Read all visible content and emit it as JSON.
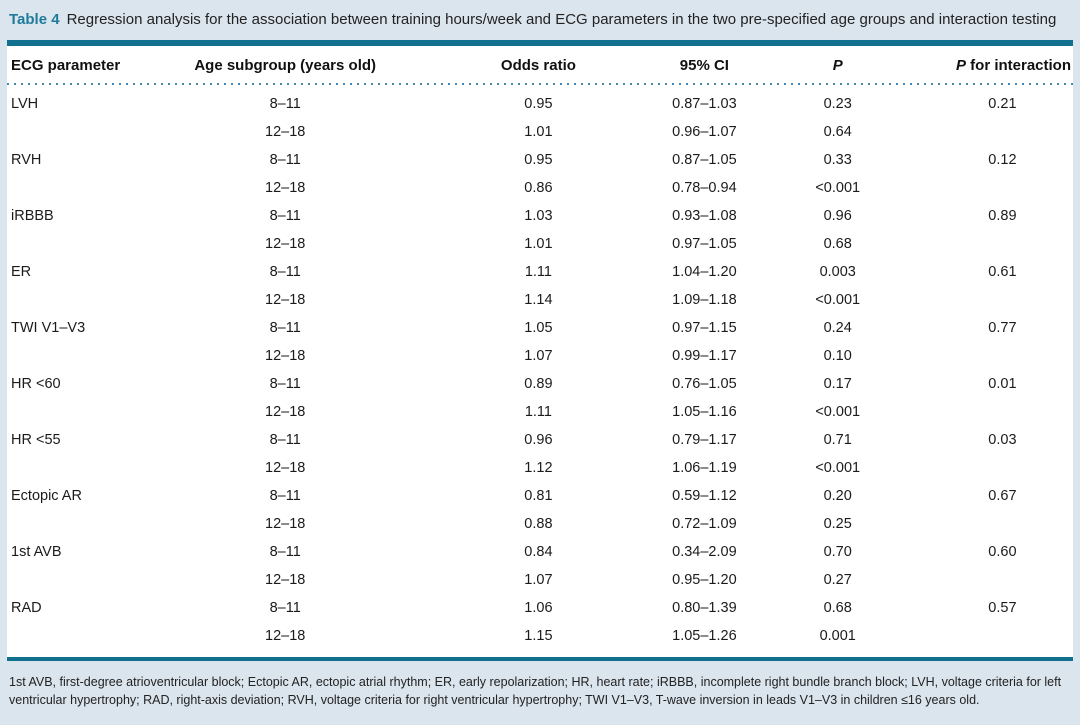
{
  "caption": {
    "label": "Table 4",
    "text": "Regression analysis for the association between training hours/week and ECG parameters in the two pre-specified age groups and interaction testing"
  },
  "table": {
    "header": {
      "ecg": "ECG parameter",
      "age": "Age subgroup (years old)",
      "or": "Odds ratio",
      "ci": "95% CI",
      "p": "P",
      "p_interaction_prefix": "P",
      "p_interaction_rest": "for interaction"
    },
    "rows": [
      {
        "parameter": "LVH",
        "age": "8–11",
        "or": "0.95",
        "ci": "0.87–1.03",
        "p": "0.23",
        "p_interaction": "0.21"
      },
      {
        "parameter": "",
        "age": "12–18",
        "or": "1.01",
        "ci": "0.96–1.07",
        "p": "0.64",
        "p_interaction": ""
      },
      {
        "parameter": "RVH",
        "age": "8–11",
        "or": "0.95",
        "ci": "0.87–1.05",
        "p": "0.33",
        "p_interaction": "0.12"
      },
      {
        "parameter": "",
        "age": "12–18",
        "or": "0.86",
        "ci": "0.78–0.94",
        "p": "<0.001",
        "p_interaction": ""
      },
      {
        "parameter": "iRBBB",
        "age": "8–11",
        "or": "1.03",
        "ci": "0.93–1.08",
        "p": "0.96",
        "p_interaction": "0.89"
      },
      {
        "parameter": "",
        "age": "12–18",
        "or": "1.01",
        "ci": "0.97–1.05",
        "p": "0.68",
        "p_interaction": ""
      },
      {
        "parameter": "ER",
        "age": "8–11",
        "or": "1.11",
        "ci": "1.04–1.20",
        "p": "0.003",
        "p_interaction": "0.61"
      },
      {
        "parameter": "",
        "age": "12–18",
        "or": "1.14",
        "ci": "1.09–1.18",
        "p": "<0.001",
        "p_interaction": ""
      },
      {
        "parameter": "TWI V1–V3",
        "age": "8–11",
        "or": "1.05",
        "ci": "0.97–1.15",
        "p": "0.24",
        "p_interaction": "0.77"
      },
      {
        "parameter": "",
        "age": "12–18",
        "or": "1.07",
        "ci": "0.99–1.17",
        "p": "0.10",
        "p_interaction": ""
      },
      {
        "parameter": "HR <60",
        "age": "8–11",
        "or": "0.89",
        "ci": "0.76–1.05",
        "p": "0.17",
        "p_interaction": "0.01"
      },
      {
        "parameter": "",
        "age": "12–18",
        "or": "1.11",
        "ci": "1.05–1.16",
        "p": "<0.001",
        "p_interaction": ""
      },
      {
        "parameter": "HR <55",
        "age": "8–11",
        "or": "0.96",
        "ci": "0.79–1.17",
        "p": "0.71",
        "p_interaction": "0.03"
      },
      {
        "parameter": "",
        "age": "12–18",
        "or": "1.12",
        "ci": "1.06–1.19",
        "p": "<0.001",
        "p_interaction": ""
      },
      {
        "parameter": "Ectopic AR",
        "age": "8–11",
        "or": "0.81",
        "ci": "0.59–1.12",
        "p": "0.20",
        "p_interaction": "0.67"
      },
      {
        "parameter": "",
        "age": "12–18",
        "or": "0.88",
        "ci": "0.72–1.09",
        "p": "0.25",
        "p_interaction": ""
      },
      {
        "parameter": "1st AVB",
        "age": "8–11",
        "or": "0.84",
        "ci": "0.34–2.09",
        "p": "0.70",
        "p_interaction": "0.60"
      },
      {
        "parameter": "",
        "age": "12–18",
        "or": "1.07",
        "ci": "0.95–1.20",
        "p": "0.27",
        "p_interaction": ""
      },
      {
        "parameter": "RAD",
        "age": "8–11",
        "or": "1.06",
        "ci": "0.80–1.39",
        "p": "0.68",
        "p_interaction": "0.57"
      },
      {
        "parameter": "",
        "age": "12–18",
        "or": "1.15",
        "ci": "1.05–1.26",
        "p": "0.001",
        "p_interaction": ""
      }
    ]
  },
  "footnote": "1st AVB, first-degree atrioventricular block; Ectopic AR, ectopic atrial rhythm; ER, early repolarization; HR, heart rate; iRBBB, incomplete right bundle branch block; LVH, voltage criteria for left ventricular hypertrophy; RAD, right-axis deviation; RVH, voltage criteria for right ventricular hypertrophy; TWI V1–V3, T-wave inversion in leads V1–V3 in children ≤16 years old.",
  "colors": {
    "accent_teal": "#10708e",
    "caption_label_teal": "#1f7a9b",
    "dotted_rule_blue": "#4589b0",
    "page_background": "#dbe5ee",
    "table_background": "#ffffff"
  }
}
